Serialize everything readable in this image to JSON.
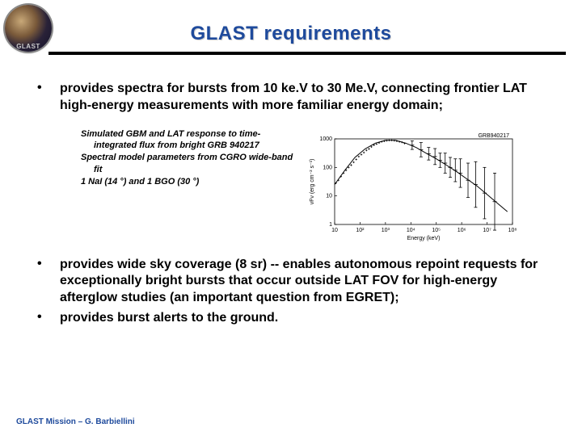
{
  "header": {
    "title": "GLAST requirements",
    "logo_text": "GLAST",
    "title_color": "#1e4a9c"
  },
  "bullets": {
    "b1": "provides spectra for bursts from 10 ke.V to 30 Me.V, connecting frontier LAT high-energy measurements with more familiar energy domain;",
    "b2": "provides wide sky coverage (8 sr) --  enables autonomous repoint requests for exceptionally bright bursts that occur outside LAT FOV for high-energy afterglow studies (an important question from EGRET);",
    "b3": "provides burst alerts to the ground."
  },
  "caption": {
    "l1": "Simulated GBM and LAT response to time-",
    "l1b": "integrated flux from bright GRB 940217",
    "l2": "Spectral model parameters from CGRO wide-band",
    "l2b": "fit",
    "l3": "1 NaI (14 °) and 1 BGO (30 °)"
  },
  "chart": {
    "title_right": "GRB940217",
    "ylabel": "νFν (erg cm⁻² s⁻¹)",
    "xlabel": "Energy (keV)",
    "ylim_log": [
      1,
      1000
    ],
    "xlim_log": [
      10,
      100000000.0
    ],
    "xticks": [
      "10",
      "10²",
      "10³",
      "10⁴",
      "10⁵",
      "10⁶",
      "10⁷",
      "10⁸"
    ],
    "yticks": [
      "1",
      "10",
      "100",
      "1000"
    ],
    "line_color": "#000000",
    "marker_color": "#000000",
    "background_color": "#ffffff",
    "curve_points_logx_logy": [
      [
        1.0,
        1.4
      ],
      [
        1.4,
        1.9
      ],
      [
        1.8,
        2.35
      ],
      [
        2.2,
        2.65
      ],
      [
        2.6,
        2.85
      ],
      [
        3.0,
        2.95
      ],
      [
        3.4,
        2.95
      ],
      [
        3.8,
        2.85
      ],
      [
        4.2,
        2.7
      ],
      [
        4.6,
        2.5
      ],
      [
        5.0,
        2.3
      ],
      [
        5.4,
        2.08
      ],
      [
        5.8,
        1.85
      ],
      [
        6.2,
        1.6
      ],
      [
        6.6,
        1.35
      ],
      [
        7.0,
        1.05
      ],
      [
        7.4,
        0.75
      ],
      [
        7.8,
        0.45
      ]
    ],
    "dense_markers_logx_logy": [
      [
        1.05,
        1.45
      ],
      [
        1.15,
        1.55
      ],
      [
        1.25,
        1.68
      ],
      [
        1.35,
        1.8
      ],
      [
        1.45,
        1.9
      ],
      [
        1.55,
        2.0
      ],
      [
        1.65,
        2.08
      ],
      [
        1.75,
        2.18
      ],
      [
        1.85,
        2.28
      ],
      [
        1.95,
        2.38
      ],
      [
        2.05,
        2.45
      ],
      [
        2.15,
        2.52
      ],
      [
        2.25,
        2.6
      ],
      [
        2.35,
        2.65
      ],
      [
        2.45,
        2.72
      ],
      [
        2.55,
        2.78
      ],
      [
        2.65,
        2.82
      ],
      [
        2.75,
        2.86
      ],
      [
        2.85,
        2.9
      ],
      [
        2.95,
        2.92
      ],
      [
        3.05,
        2.94
      ],
      [
        3.15,
        2.95
      ],
      [
        3.25,
        2.95
      ],
      [
        3.35,
        2.94
      ],
      [
        3.45,
        2.92
      ],
      [
        3.55,
        2.9
      ],
      [
        3.65,
        2.88
      ],
      [
        3.75,
        2.84
      ]
    ],
    "error_markers": [
      {
        "logx": 4.05,
        "logy": 2.78,
        "yerr": 0.15
      },
      {
        "logx": 4.4,
        "logy": 2.62,
        "yerr": 0.25
      },
      {
        "logx": 4.7,
        "logy": 2.48,
        "yerr": 0.22
      },
      {
        "logx": 4.95,
        "logy": 2.38,
        "yerr": 0.28
      },
      {
        "logx": 5.15,
        "logy": 2.25,
        "yerr": 0.25
      },
      {
        "logx": 5.35,
        "logy": 2.15,
        "yerr": 0.35
      },
      {
        "logx": 5.55,
        "logy": 2.0,
        "yerr": 0.35
      },
      {
        "logx": 5.75,
        "logy": 1.9,
        "yerr": 0.4
      },
      {
        "logx": 5.95,
        "logy": 1.8,
        "yerr": 0.5
      },
      {
        "logx": 6.25,
        "logy": 1.55,
        "yerr": 0.6
      },
      {
        "logx": 6.55,
        "logy": 1.4,
        "yerr": 0.8
      },
      {
        "logx": 6.9,
        "logy": 1.1,
        "yerr": 0.9
      },
      {
        "logx": 7.3,
        "logy": 0.8,
        "yerr": 1.0
      }
    ]
  },
  "footer": {
    "text": "GLAST Mission – G. Barbiellini",
    "color": "#1e4a9c"
  }
}
